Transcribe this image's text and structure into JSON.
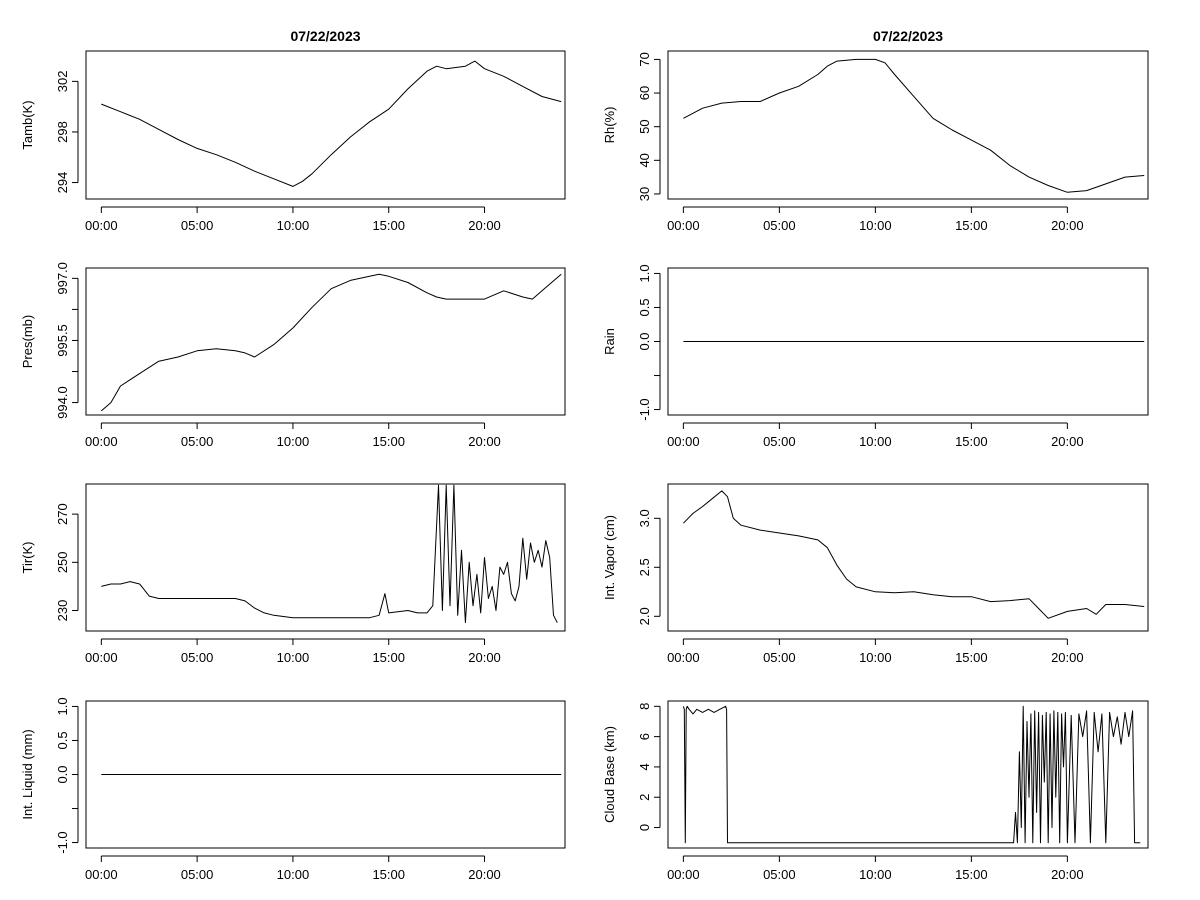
{
  "chart_data": [
    {
      "type": "line",
      "title": "07/22/2023",
      "ylabel": "Tamb(K)",
      "xlabel": "",
      "xlim": [
        -0.8,
        24.2
      ],
      "ylim": [
        292.7,
        304.4
      ],
      "xticks": [
        0,
        5,
        10,
        15,
        20
      ],
      "xtick_labels": [
        "00:00",
        "05:00",
        "10:00",
        "15:00",
        "20:00"
      ],
      "yticks": [
        294,
        298,
        302
      ],
      "ytick_labels": [
        "294",
        "298",
        "302"
      ],
      "series": [
        {
          "name": "Tamb",
          "x": [
            0,
            1,
            2,
            3,
            4,
            5,
            6,
            7,
            8,
            9,
            10,
            10.5,
            11,
            12,
            13,
            14,
            15,
            16,
            17,
            17.5,
            18,
            19,
            19.5,
            20,
            21,
            22,
            23,
            24
          ],
          "y": [
            300.2,
            299.6,
            299.0,
            298.2,
            297.4,
            296.7,
            296.2,
            295.6,
            294.9,
            294.3,
            293.7,
            294.1,
            294.7,
            296.2,
            297.6,
            298.8,
            299.8,
            301.4,
            302.8,
            303.2,
            303.0,
            303.2,
            303.6,
            303.0,
            302.4,
            301.6,
            300.8,
            300.4
          ]
        }
      ]
    },
    {
      "type": "line",
      "title": "07/22/2023",
      "ylabel": "Rh(%)",
      "xlabel": "",
      "xlim": [
        -0.8,
        24.2
      ],
      "ylim": [
        28.5,
        72.5
      ],
      "xticks": [
        0,
        5,
        10,
        15,
        20
      ],
      "xtick_labels": [
        "00:00",
        "05:00",
        "10:00",
        "15:00",
        "20:00"
      ],
      "yticks": [
        30,
        40,
        50,
        60,
        70
      ],
      "ytick_labels": [
        "30",
        "40",
        "50",
        "60",
        "70"
      ],
      "series": [
        {
          "name": "Rh",
          "x": [
            0,
            1,
            2,
            3,
            4,
            5,
            6,
            7,
            7.5,
            8,
            9,
            10,
            10.5,
            11,
            12,
            13,
            14,
            15,
            16,
            17,
            18,
            19,
            20,
            21,
            22,
            23,
            24
          ],
          "y": [
            52.5,
            55.5,
            57.0,
            57.5,
            57.5,
            60.0,
            62.0,
            65.5,
            68.0,
            69.5,
            70.0,
            70.0,
            69.0,
            65.5,
            59.0,
            52.5,
            49.0,
            46.0,
            43.0,
            38.5,
            35.0,
            32.5,
            30.5,
            31.0,
            33.0,
            35.0,
            35.5
          ]
        }
      ]
    },
    {
      "type": "line",
      "title": "",
      "ylabel": "Pres(mb)",
      "xlabel": "",
      "xlim": [
        -0.8,
        24.2
      ],
      "ylim": [
        993.7,
        997.25
      ],
      "xticks": [
        0,
        5,
        10,
        15,
        20
      ],
      "xtick_labels": [
        "00:00",
        "05:00",
        "10:00",
        "15:00",
        "20:00"
      ],
      "yticks": [
        994.0,
        994.75,
        995.5,
        996.25,
        997.0
      ],
      "ytick_labels": [
        "994.0",
        "",
        "995.5",
        "",
        "997.0"
      ],
      "series": [
        {
          "name": "Pres",
          "x": [
            0,
            0.5,
            1,
            2,
            3,
            4,
            5,
            6,
            7,
            7.5,
            8,
            9,
            10,
            11,
            12,
            13,
            14,
            14.5,
            15,
            16,
            17,
            17.5,
            18,
            19,
            20,
            21,
            22,
            22.5,
            23,
            24
          ],
          "y": [
            993.8,
            994.0,
            994.4,
            994.7,
            995.0,
            995.1,
            995.25,
            995.3,
            995.25,
            995.2,
            995.1,
            995.4,
            995.8,
            996.3,
            996.75,
            996.95,
            997.05,
            997.1,
            997.05,
            996.9,
            996.65,
            996.55,
            996.5,
            996.5,
            996.5,
            996.7,
            996.55,
            996.5,
            996.7,
            997.1
          ]
        }
      ]
    },
    {
      "type": "line",
      "title": "",
      "ylabel": "Rain",
      "xlabel": "",
      "xlim": [
        -0.8,
        24.2
      ],
      "ylim": [
        -1.08,
        1.08
      ],
      "xticks": [
        0,
        5,
        10,
        15,
        20
      ],
      "xtick_labels": [
        "00:00",
        "05:00",
        "10:00",
        "15:00",
        "20:00"
      ],
      "yticks": [
        -1.0,
        -0.5,
        0.0,
        0.5,
        1.0
      ],
      "ytick_labels": [
        "-1.0",
        "",
        "0.0",
        "0.5",
        "1.0"
      ],
      "series": [
        {
          "name": "Rain",
          "x": [
            0,
            24
          ],
          "y": [
            0.0,
            0.0
          ]
        }
      ]
    },
    {
      "type": "line",
      "title": "",
      "ylabel": "Tir(K)",
      "xlabel": "",
      "xlim": [
        -0.8,
        24.2
      ],
      "ylim": [
        221.5,
        282.5
      ],
      "xticks": [
        0,
        5,
        10,
        15,
        20
      ],
      "xtick_labels": [
        "00:00",
        "05:00",
        "10:00",
        "15:00",
        "20:00"
      ],
      "yticks": [
        230,
        250,
        270
      ],
      "ytick_labels": [
        "230",
        "250",
        "270"
      ],
      "series": [
        {
          "name": "Tir",
          "x": [
            0,
            0.5,
            1,
            1.5,
            2,
            2.2,
            2.5,
            3,
            5,
            7,
            7.5,
            8,
            8.5,
            9,
            10,
            12,
            14,
            14.5,
            14.8,
            15,
            16,
            16.5,
            17,
            17.3,
            17.6,
            17.8,
            18,
            18.2,
            18.4,
            18.6,
            18.8,
            19,
            19.2,
            19.4,
            19.6,
            19.8,
            20,
            20.2,
            20.4,
            20.6,
            20.8,
            21,
            21.2,
            21.4,
            21.6,
            21.8,
            22,
            22.2,
            22.4,
            22.6,
            22.8,
            23,
            23.2,
            23.4,
            23.6,
            23.8
          ],
          "y": [
            240,
            241,
            241,
            242,
            241,
            239,
            236,
            235,
            235,
            235,
            234,
            231,
            229,
            228,
            227,
            227,
            227,
            228,
            237,
            229,
            230,
            229,
            229,
            232,
            282,
            230,
            282,
            232,
            282,
            228,
            255,
            225,
            250,
            232,
            245,
            229,
            252,
            235,
            240,
            230,
            248,
            245,
            250,
            237,
            234,
            240,
            260,
            243,
            258,
            250,
            255,
            248,
            259,
            252,
            228,
            225
          ]
        }
      ]
    },
    {
      "type": "line",
      "title": "",
      "ylabel": "Int. Vapor (cm)",
      "xlabel": "",
      "xlim": [
        -0.8,
        24.2
      ],
      "ylim": [
        1.85,
        3.35
      ],
      "xticks": [
        0,
        5,
        10,
        15,
        20
      ],
      "xtick_labels": [
        "00:00",
        "05:00",
        "10:00",
        "15:00",
        "20:00"
      ],
      "yticks": [
        2.0,
        2.5,
        3.0
      ],
      "ytick_labels": [
        "2.0",
        "2.5",
        "3.0"
      ],
      "series": [
        {
          "name": "Int. Vapor",
          "x": [
            0,
            0.5,
            1,
            1.5,
            2,
            2.3,
            2.6,
            3,
            4,
            5,
            6,
            7,
            7.5,
            8,
            8.5,
            9,
            10,
            11,
            12,
            13,
            14,
            15,
            16,
            17,
            18,
            18.5,
            19,
            20,
            21,
            21.5,
            22,
            23,
            24
          ],
          "y": [
            2.95,
            3.05,
            3.12,
            3.2,
            3.28,
            3.22,
            3.0,
            2.93,
            2.88,
            2.85,
            2.82,
            2.78,
            2.7,
            2.52,
            2.38,
            2.3,
            2.25,
            2.24,
            2.25,
            2.22,
            2.2,
            2.2,
            2.15,
            2.16,
            2.18,
            2.08,
            1.98,
            2.05,
            2.08,
            2.02,
            2.12,
            2.12,
            2.1
          ]
        }
      ]
    },
    {
      "type": "line",
      "title": "",
      "ylabel": "Int. Liquid (mm)",
      "xlabel": "",
      "xlim": [
        -0.8,
        24.2
      ],
      "ylim": [
        -1.08,
        1.08
      ],
      "xticks": [
        0,
        5,
        10,
        15,
        20
      ],
      "xtick_labels": [
        "00:00",
        "05:00",
        "10:00",
        "15:00",
        "20:00"
      ],
      "yticks": [
        -1.0,
        -0.5,
        0.0,
        0.5,
        1.0
      ],
      "ytick_labels": [
        "-1.0",
        "",
        "0.0",
        "0.5",
        "1.0"
      ],
      "series": [
        {
          "name": "Int. Liquid",
          "x": [
            0,
            24
          ],
          "y": [
            0.0,
            0.0
          ]
        }
      ]
    },
    {
      "type": "line",
      "title": "",
      "ylabel": "Cloud Base (km)",
      "xlabel": "",
      "xlim": [
        -0.8,
        24.2
      ],
      "ylim": [
        -1.35,
        8.35
      ],
      "xticks": [
        0,
        5,
        10,
        15,
        20
      ],
      "xtick_labels": [
        "00:00",
        "05:00",
        "10:00",
        "15:00",
        "20:00"
      ],
      "yticks": [
        0,
        2,
        4,
        6,
        8
      ],
      "ytick_labels": [
        "0",
        "2",
        "4",
        "6",
        "8"
      ],
      "series": [
        {
          "name": "Cloud Base",
          "x": [
            0,
            0.05,
            0.1,
            0.15,
            0.2,
            0.3,
            0.5,
            0.7,
            1,
            1.3,
            1.6,
            1.9,
            2.2,
            2.25,
            2.3,
            17.2,
            17.3,
            17.4,
            17.5,
            17.6,
            17.7,
            17.8,
            17.9,
            18.0,
            18.1,
            18.2,
            18.3,
            18.4,
            18.5,
            18.6,
            18.7,
            18.8,
            18.9,
            19.0,
            19.1,
            19.2,
            19.3,
            19.4,
            19.5,
            19.6,
            19.7,
            19.8,
            19.9,
            20.0,
            20.2,
            20.4,
            20.6,
            20.8,
            21.0,
            21.2,
            21.4,
            21.6,
            21.8,
            22.0,
            22.2,
            22.4,
            22.6,
            22.8,
            23.0,
            23.2,
            23.4,
            23.5,
            23.6,
            23.8
          ],
          "y": [
            8,
            7.8,
            -1,
            7.8,
            8,
            7.8,
            7.5,
            7.8,
            7.6,
            7.8,
            7.6,
            7.8,
            8,
            7.8,
            -1,
            -1,
            1,
            -1,
            5,
            0,
            8,
            -1,
            7,
            2,
            7.5,
            -1,
            7.7,
            1,
            7.6,
            -1,
            7.4,
            3,
            7.6,
            -1,
            7.5,
            0,
            7.7,
            2,
            7.6,
            -1,
            7.5,
            4,
            7.6,
            -1,
            7.4,
            -1,
            7.5,
            6,
            7.7,
            -1,
            7.6,
            5,
            7.5,
            -1,
            7.6,
            6,
            7.3,
            5.5,
            7.6,
            6,
            7.7,
            -1,
            -1,
            -1
          ]
        }
      ]
    }
  ]
}
